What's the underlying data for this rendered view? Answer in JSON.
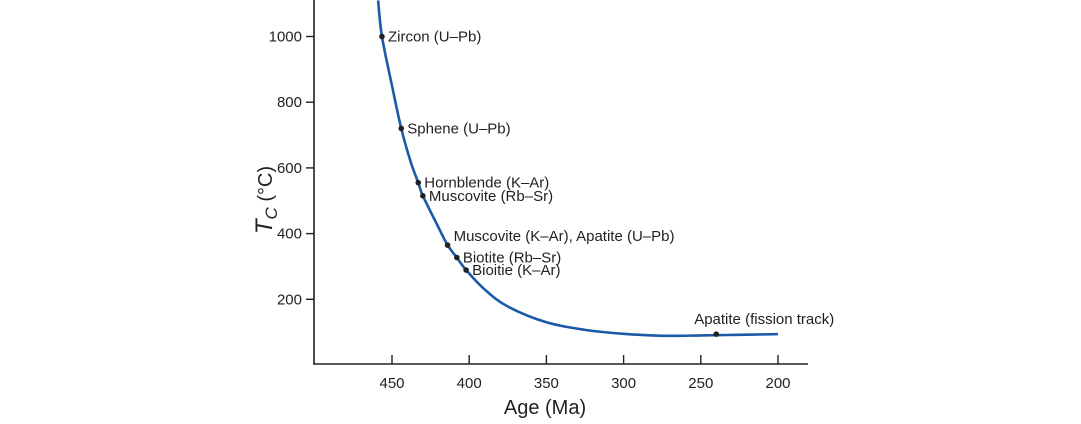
{
  "chart_data": {
    "type": "line",
    "title": "",
    "xlabel": "Age (Ma)",
    "ylabel": {
      "main": "T",
      "sub": "C",
      "unit": " (°C)"
    },
    "xlim": [
      490,
      180
    ],
    "ylim": [
      0,
      1110
    ],
    "x_ticks": [
      450,
      400,
      350,
      300,
      250,
      200
    ],
    "y_ticks": [
      200,
      400,
      600,
      800,
      1000
    ],
    "grid": false,
    "curve_color": "#1a5aa6",
    "curve": {
      "x": [
        459,
        456.5,
        450,
        444,
        438,
        433,
        430,
        420,
        414,
        408,
        402,
        390,
        375,
        350,
        325,
        300,
        275,
        250,
        225,
        200
      ],
      "y": [
        1110,
        1000,
        850,
        720,
        620,
        555,
        515,
        420,
        365,
        327,
        289,
        230,
        178,
        130,
        107,
        95,
        89,
        90,
        92,
        94
      ]
    },
    "points": [
      {
        "label": "Zircon (U–Pb)",
        "age": 456.5,
        "tc": 1000
      },
      {
        "label": "Sphene (U–Pb)",
        "age": 444,
        "tc": 720
      },
      {
        "label": "Hornblende (K–Ar)",
        "age": 433,
        "tc": 555
      },
      {
        "label": "Muscovite (Rb–Sr)",
        "age": 430,
        "tc": 515
      },
      {
        "label": "Muscovite (K–Ar), Apatite (U–Pb)",
        "age": 414,
        "tc": 365
      },
      {
        "label": "Biotite (Rb–Sr)",
        "age": 408,
        "tc": 327
      },
      {
        "label": "Bioitie (K–Ar)",
        "age": 402,
        "tc": 289
      },
      {
        "label": "Apatite (fission track)",
        "age": 240,
        "tc": 94
      }
    ]
  }
}
